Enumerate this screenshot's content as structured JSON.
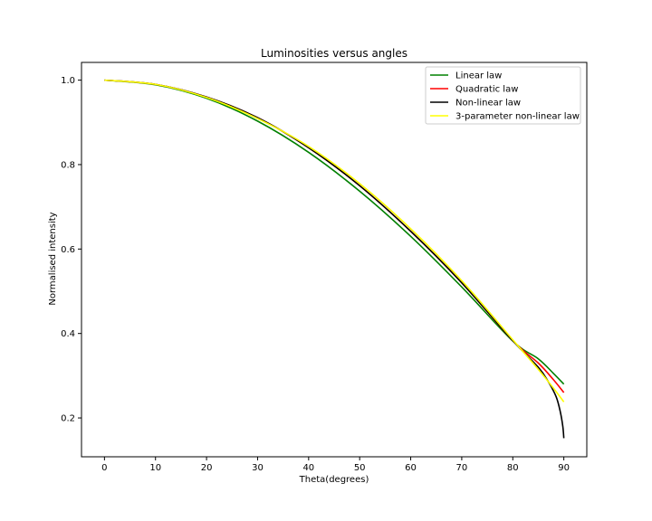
{
  "chart_data": {
    "type": "line",
    "title": "Luminosities versus angles",
    "xlabel": "Theta(degrees)",
    "ylabel": "Normalised intensity",
    "xlim": [
      -4.5,
      94.5
    ],
    "ylim": [
      0.108,
      1.042
    ],
    "xticks": [
      0,
      10,
      20,
      30,
      40,
      50,
      60,
      70,
      80,
      90
    ],
    "xtick_labels": [
      "0",
      "10",
      "20",
      "30",
      "40",
      "50",
      "60",
      "70",
      "80",
      "90"
    ],
    "yticks": [
      0.2,
      0.4,
      0.6,
      0.8,
      1.0
    ],
    "ytick_labels": [
      "0.2",
      "0.4",
      "0.6",
      "0.8",
      "1.0"
    ],
    "grid": false,
    "legend_position": "top-right",
    "series": [
      {
        "name": "Linear law",
        "color": "#008000",
        "x": [
          0,
          10,
          20,
          30,
          40,
          50,
          60,
          70,
          80,
          85,
          88,
          90
        ],
        "y": [
          1.0,
          0.989,
          0.957,
          0.903,
          0.829,
          0.737,
          0.63,
          0.51,
          0.382,
          0.34,
          0.305,
          0.28
        ]
      },
      {
        "name": "Quadratic law",
        "color": "#ff0000",
        "x": [
          0,
          10,
          20,
          30,
          40,
          50,
          60,
          70,
          80,
          85,
          88,
          90
        ],
        "y": [
          1.0,
          0.99,
          0.96,
          0.911,
          0.84,
          0.75,
          0.642,
          0.52,
          0.383,
          0.33,
          0.29,
          0.26
        ]
      },
      {
        "name": "Non-linear law",
        "color": "#000000",
        "x": [
          0,
          10,
          20,
          30,
          40,
          50,
          60,
          70,
          80,
          85,
          87,
          88.5,
          89.3,
          89.8,
          90
        ],
        "y": [
          1.0,
          0.99,
          0.96,
          0.911,
          0.84,
          0.75,
          0.642,
          0.52,
          0.383,
          0.32,
          0.285,
          0.25,
          0.215,
          0.18,
          0.152
        ]
      },
      {
        "name": "3-parameter non-linear law",
        "color": "#ffff00",
        "x": [
          0,
          10,
          20,
          30,
          40,
          50,
          60,
          70,
          80,
          85,
          88,
          90
        ],
        "y": [
          1.0,
          0.99,
          0.959,
          0.909,
          0.843,
          0.755,
          0.648,
          0.525,
          0.385,
          0.315,
          0.27,
          0.238
        ]
      }
    ]
  }
}
